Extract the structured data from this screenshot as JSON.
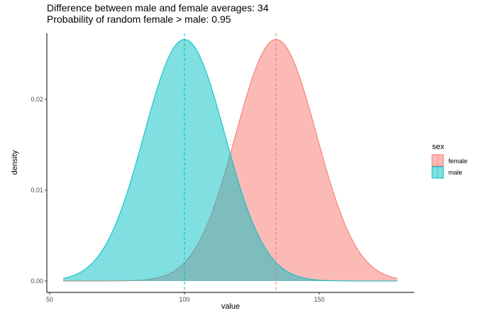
{
  "chart_data": {
    "type": "area",
    "title": "Difference between male and female averages: 34",
    "subtitle": "Probability of random female > male: 0.95",
    "xlabel": "value",
    "ylabel": "density",
    "xlim": [
      50,
      180
    ],
    "ylim": [
      0,
      0.027
    ],
    "x_ticks": [
      "50",
      "100",
      "150"
    ],
    "x_tick_values": [
      50,
      100,
      150
    ],
    "y_ticks": [
      "0.00",
      "0.01",
      "0.02"
    ],
    "y_tick_values": [
      0,
      0.01,
      0.02
    ],
    "grid": false,
    "legend": {
      "title": "sex",
      "position": "right",
      "entries": [
        "female",
        "male"
      ]
    },
    "series": [
      {
        "name": "female",
        "mean": 134,
        "sd": 15,
        "x_range": [
          55,
          179
        ],
        "fill": "#F8766D",
        "line": "#F8766D"
      },
      {
        "name": "male",
        "mean": 100,
        "sd": 15,
        "x_range": [
          55,
          179
        ],
        "fill": "#00BFC4",
        "line": "#00BFC4"
      }
    ],
    "mean_lines": [
      {
        "series": "male",
        "x": 100,
        "color": "#00BFC4"
      },
      {
        "series": "female",
        "x": 134,
        "color": "#F8766D"
      }
    ]
  }
}
